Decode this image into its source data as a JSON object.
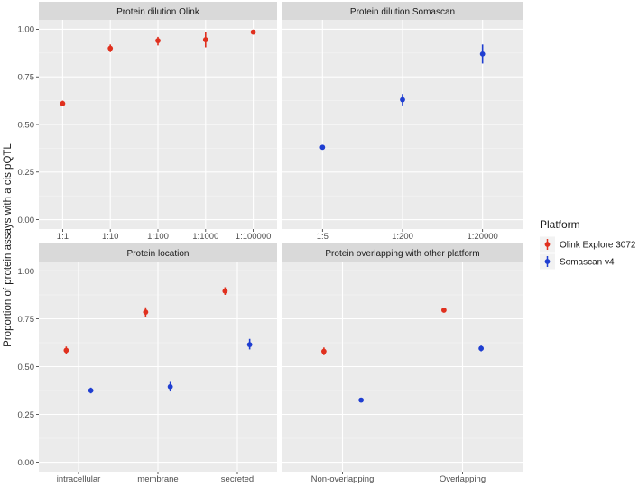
{
  "chart_data": {
    "type": "scatter",
    "ylabel": "Proportion of protein assays with a cis pQTL",
    "ylim": [
      0,
      1
    ],
    "yticks": [
      "0.00",
      "0.25",
      "0.50",
      "0.75",
      "1.00"
    ],
    "legend": {
      "title": "Platform",
      "position": "right",
      "items": [
        {
          "name": "Olink Explore 3072",
          "color": "#e0301e"
        },
        {
          "name": "Somascan v4",
          "color": "#1f3ed1"
        }
      ]
    },
    "panels": [
      {
        "title": "Protein dilution Olink",
        "categories": [
          "1:1",
          "1:10",
          "1:100",
          "1:1000",
          "1:100000"
        ],
        "series": [
          {
            "name": "Olink Explore 3072",
            "color": "#e0301e",
            "points": [
              {
                "category": "1:1",
                "value": 0.61,
                "lower": 0.595,
                "upper": 0.625
              },
              {
                "category": "1:10",
                "value": 0.9,
                "lower": 0.88,
                "upper": 0.92
              },
              {
                "category": "1:100",
                "value": 0.94,
                "lower": 0.915,
                "upper": 0.96
              },
              {
                "category": "1:1000",
                "value": 0.945,
                "lower": 0.905,
                "upper": 0.985
              },
              {
                "category": "1:100000",
                "value": 0.985,
                "lower": 0.975,
                "upper": 0.995
              }
            ]
          }
        ]
      },
      {
        "title": "Protein dilution Somascan",
        "categories": [
          "1:5",
          "1:200",
          "1:20000"
        ],
        "series": [
          {
            "name": "Somascan v4",
            "color": "#1f3ed1",
            "points": [
              {
                "category": "1:5",
                "value": 0.38,
                "lower": 0.37,
                "upper": 0.39
              },
              {
                "category": "1:200",
                "value": 0.63,
                "lower": 0.6,
                "upper": 0.66
              },
              {
                "category": "1:20000",
                "value": 0.87,
                "lower": 0.82,
                "upper": 0.92
              }
            ]
          }
        ]
      },
      {
        "title": "Protein location",
        "categories": [
          "intracellular",
          "membrane",
          "secreted"
        ],
        "series": [
          {
            "name": "Olink Explore 3072",
            "color": "#e0301e",
            "points": [
              {
                "category": "intracellular",
                "value": 0.585,
                "lower": 0.565,
                "upper": 0.605
              },
              {
                "category": "membrane",
                "value": 0.785,
                "lower": 0.76,
                "upper": 0.81
              },
              {
                "category": "secreted",
                "value": 0.895,
                "lower": 0.875,
                "upper": 0.915
              }
            ]
          },
          {
            "name": "Somascan v4",
            "color": "#1f3ed1",
            "points": [
              {
                "category": "intracellular",
                "value": 0.375,
                "lower": 0.36,
                "upper": 0.39
              },
              {
                "category": "membrane",
                "value": 0.395,
                "lower": 0.37,
                "upper": 0.42
              },
              {
                "category": "secreted",
                "value": 0.615,
                "lower": 0.59,
                "upper": 0.645
              }
            ]
          }
        ]
      },
      {
        "title": "Protein overlapping with other platform",
        "categories": [
          "Non-overlapping",
          "Overlapping"
        ],
        "series": [
          {
            "name": "Olink Explore 3072",
            "color": "#e0301e",
            "points": [
              {
                "category": "Non-overlapping",
                "value": 0.58,
                "lower": 0.56,
                "upper": 0.6
              },
              {
                "category": "Overlapping",
                "value": 0.795,
                "lower": 0.785,
                "upper": 0.805
              }
            ]
          },
          {
            "name": "Somascan v4",
            "color": "#1f3ed1",
            "points": [
              {
                "category": "Non-overlapping",
                "value": 0.325,
                "lower": 0.315,
                "upper": 0.335
              },
              {
                "category": "Overlapping",
                "value": 0.595,
                "lower": 0.58,
                "upper": 0.61
              }
            ]
          }
        ]
      }
    ]
  }
}
